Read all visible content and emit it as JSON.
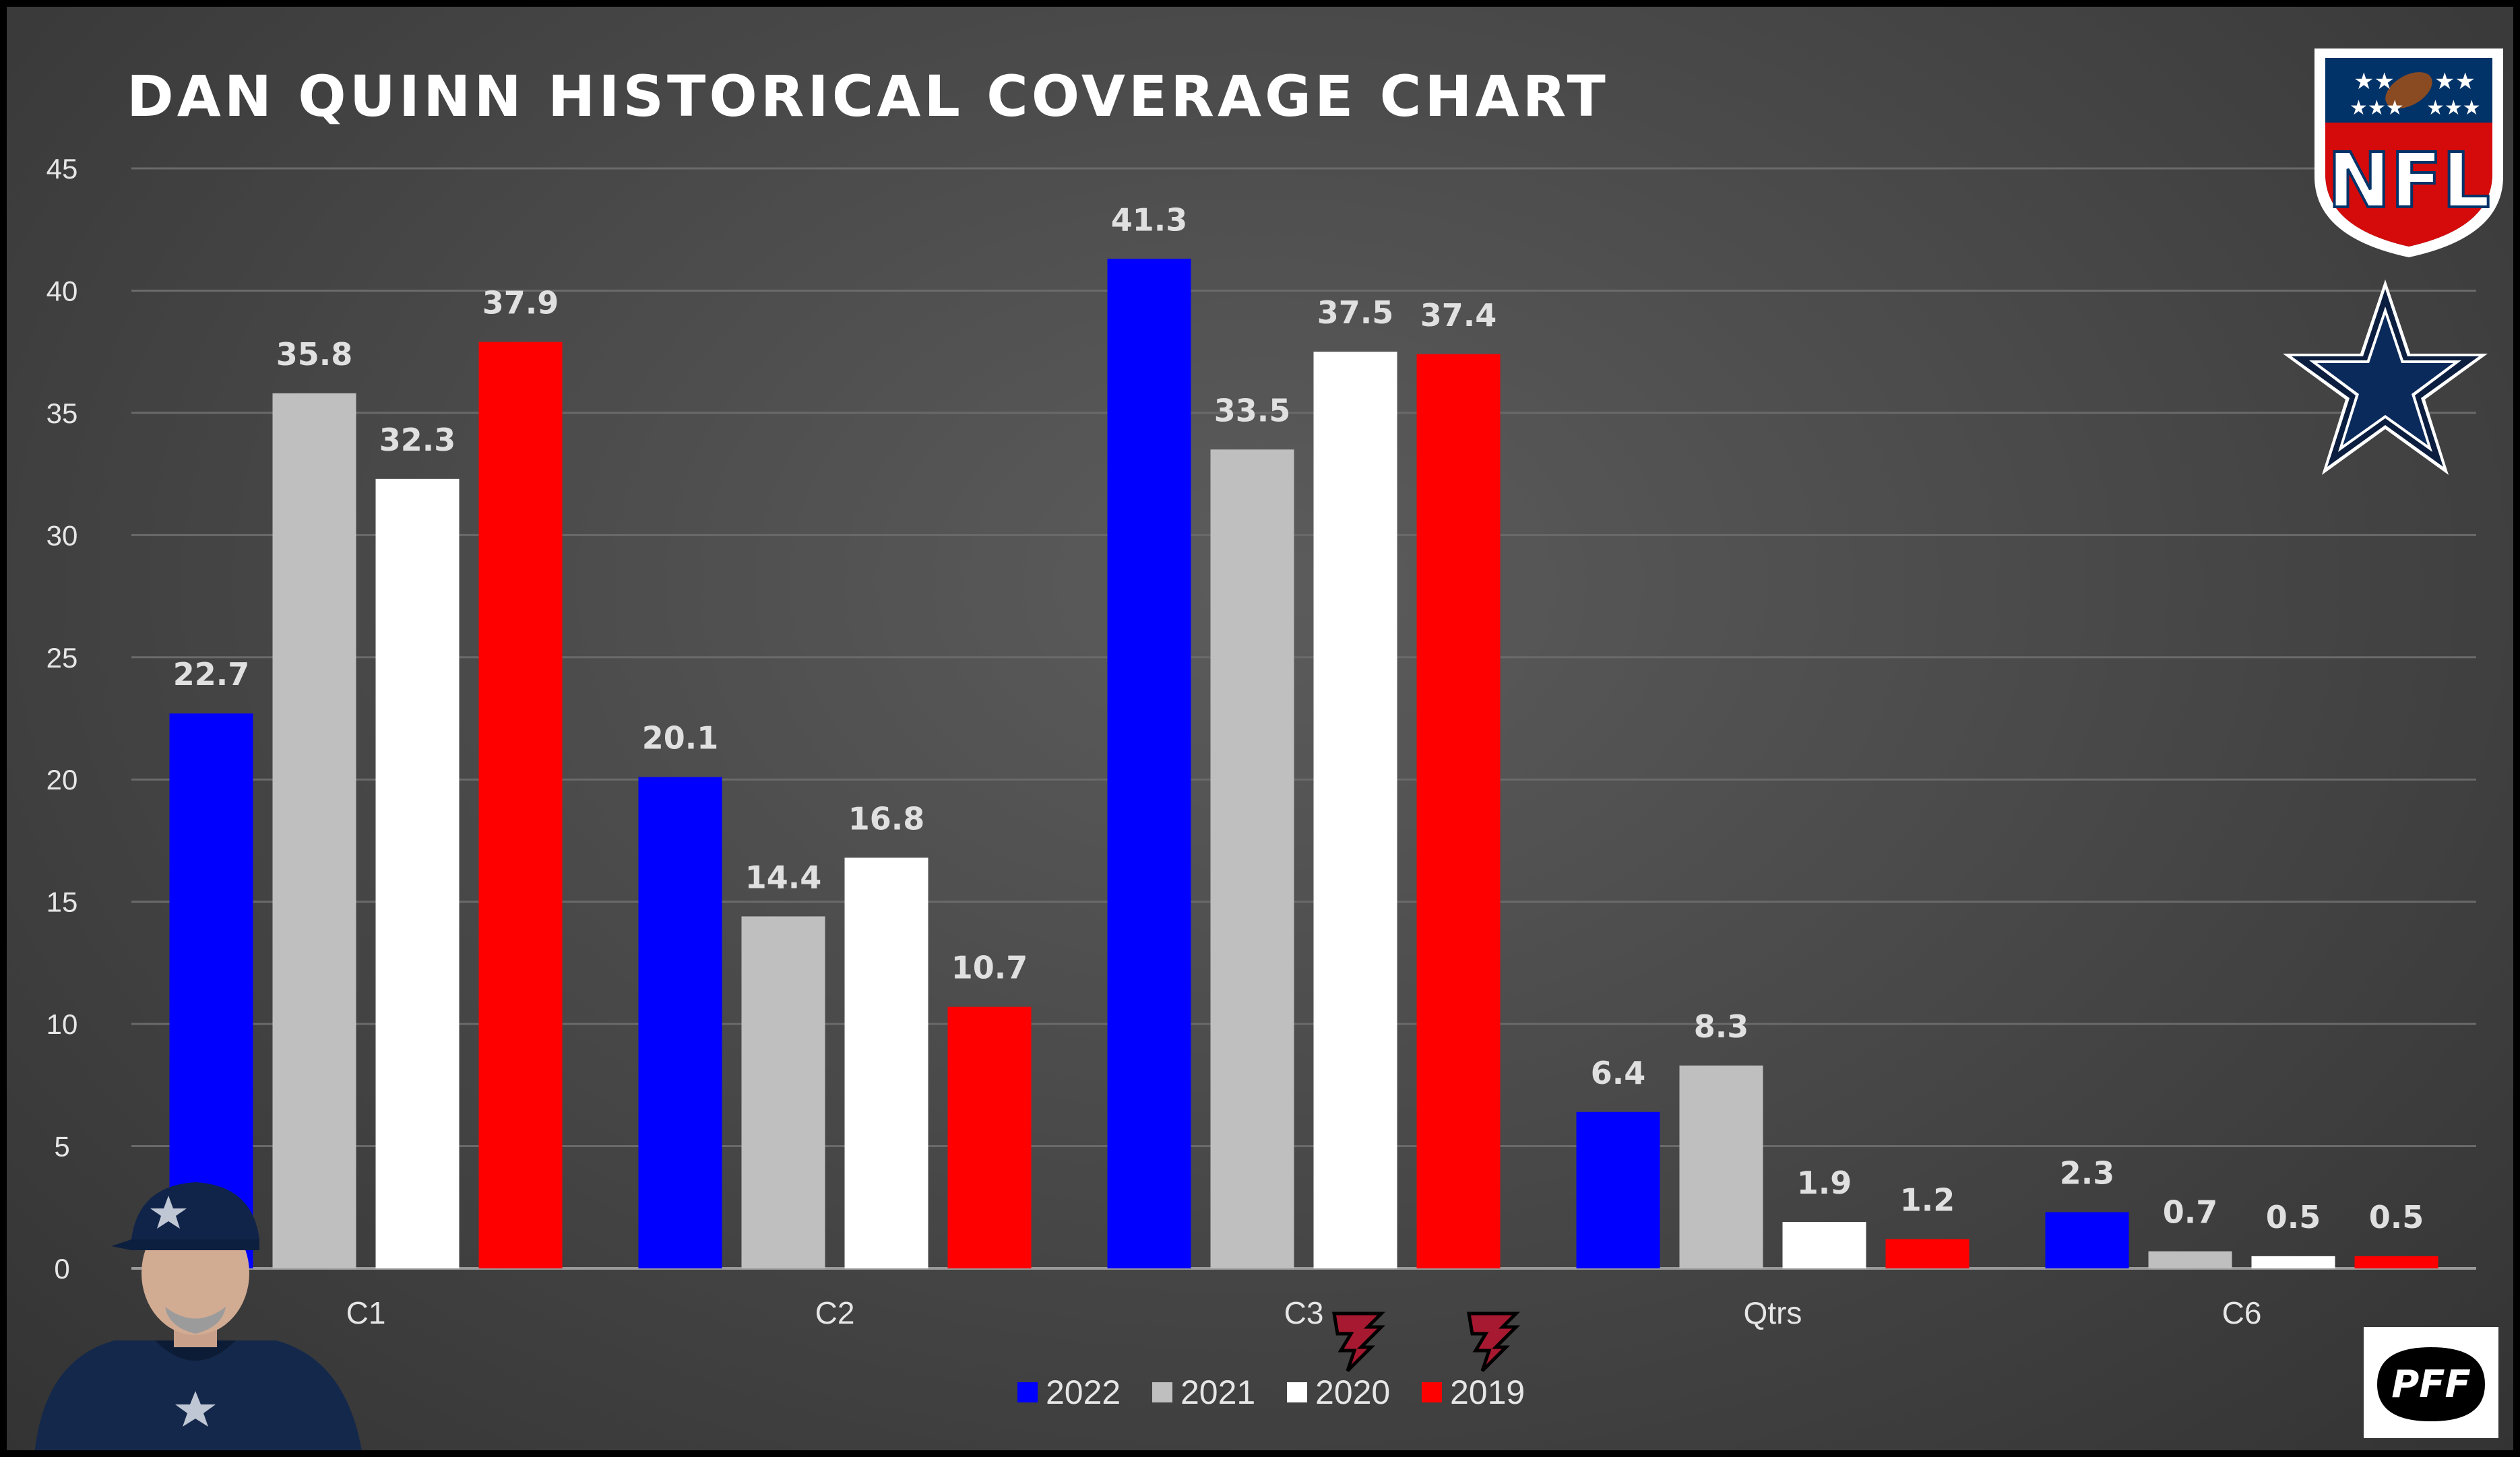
{
  "chart_data": {
    "type": "bar",
    "title": "DAN QUINN HISTORICAL COVERAGE CHART",
    "xlabel": "",
    "ylabel": "",
    "ylim": [
      0,
      45
    ],
    "yticks": [
      0,
      5,
      10,
      15,
      20,
      25,
      30,
      35,
      40,
      45
    ],
    "grid": true,
    "legend_position": "bottom",
    "categories": [
      "C1",
      "C2",
      "C3",
      "Qtrs",
      "C6"
    ],
    "series": [
      {
        "name": "2022",
        "color": "#0000ff",
        "values": [
          22.7,
          20.1,
          41.3,
          6.4,
          2.3
        ]
      },
      {
        "name": "2021",
        "color": "#bfbfbf",
        "values": [
          35.8,
          14.4,
          33.5,
          8.3,
          0.7
        ]
      },
      {
        "name": "2020",
        "color": "#ffffff",
        "values": [
          32.3,
          16.8,
          37.5,
          1.9,
          0.5
        ]
      },
      {
        "name": "2019",
        "color": "#ff0000",
        "values": [
          37.9,
          10.7,
          37.4,
          1.2,
          0.5
        ]
      }
    ]
  },
  "logos": {
    "nfl": "NFL",
    "pff": "PFF",
    "icons": [
      "nfl-shield-icon",
      "cowboys-star-icon",
      "falcons-logo-icon",
      "pff-logo-icon",
      "coach-photo"
    ]
  }
}
